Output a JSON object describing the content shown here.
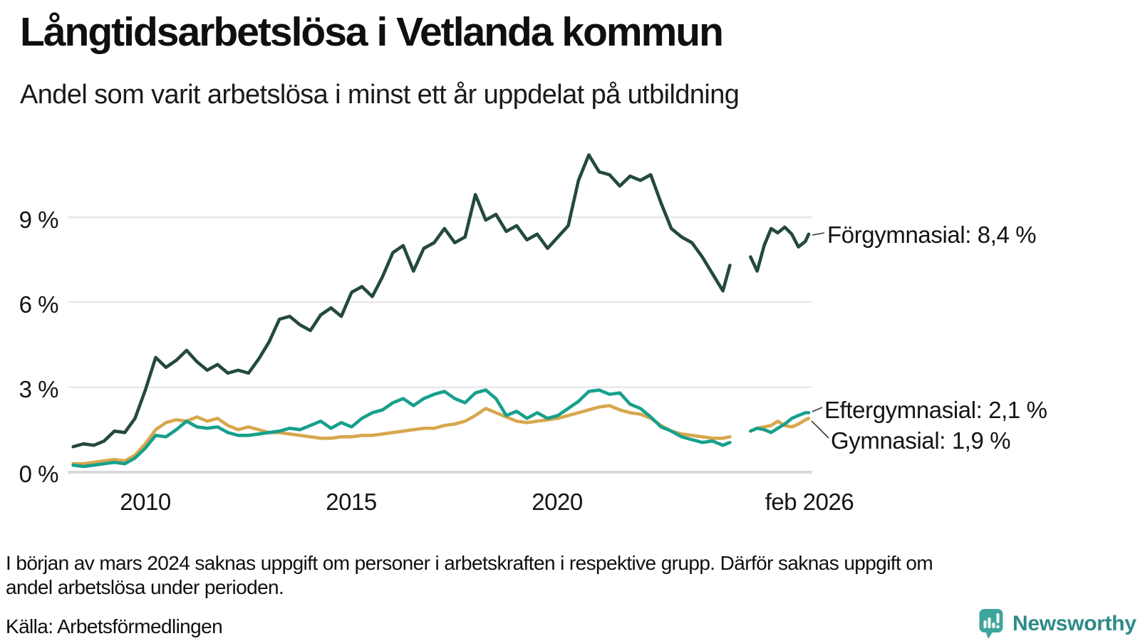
{
  "page": {
    "title": "Långtidsarbetslösa i Vetlanda kommun",
    "subtitle": "Andel som varit arbetslösa i minst ett år uppdelat på utbildning"
  },
  "footnote": {
    "line1": "I början av mars 2024 saknas uppgift om personer i arbetskraften i respektive grupp. Därför saknas uppgift om",
    "line2": "andel arbetslösa under perioden."
  },
  "source": "Källa: Arbetsförmedlingen",
  "logo": {
    "text": "Newsworthy",
    "icon": "chart-bars-speech-bubble-icon",
    "icon_color": "#3ea69b",
    "text_color": "#2e8b87"
  },
  "chart_data": {
    "type": "line",
    "title": "Långtidsarbetslösa i Vetlanda kommun",
    "subtitle": "Andel som varit arbetslösa i minst ett år uppdelat på utbildning",
    "unit": "%",
    "grid": "horizontal",
    "legend_position": "right-end-labels",
    "xlim": [
      2008.1,
      2026.3
    ],
    "ylim": [
      0,
      11.6
    ],
    "x_note": "x is decimal year; nulls = data missing from March 2024",
    "x": [
      2008.25,
      2008.5,
      2008.75,
      2009,
      2009.25,
      2009.5,
      2009.75,
      2010,
      2010.25,
      2010.5,
      2010.75,
      2011,
      2011.25,
      2011.5,
      2011.75,
      2012,
      2012.25,
      2012.5,
      2012.75,
      2013,
      2013.25,
      2013.5,
      2013.75,
      2014,
      2014.25,
      2014.5,
      2014.75,
      2015,
      2015.25,
      2015.5,
      2015.75,
      2016,
      2016.25,
      2016.5,
      2016.75,
      2017,
      2017.25,
      2017.5,
      2017.75,
      2018,
      2018.25,
      2018.5,
      2018.75,
      2019,
      2019.25,
      2019.5,
      2019.75,
      2020,
      2020.25,
      2020.5,
      2020.75,
      2021,
      2021.25,
      2021.5,
      2021.75,
      2022,
      2022.25,
      2022.5,
      2022.75,
      2023,
      2023.25,
      2023.5,
      2023.75,
      2024,
      2024.17,
      2024.33,
      2024.5,
      2024.67,
      2024.83,
      2025,
      2025.17,
      2025.33,
      2025.5,
      2025.67,
      2025.83,
      2026,
      2026.08
    ],
    "series": [
      {
        "name": "Förgymnasial",
        "color": "#24493f",
        "end_value": 8.4,
        "end_label": "Förgymnasial: 8,4 %",
        "values": [
          0.9,
          1.0,
          0.95,
          1.1,
          1.45,
          1.4,
          1.9,
          2.9,
          4.05,
          3.7,
          3.95,
          4.3,
          3.9,
          3.6,
          3.8,
          3.5,
          3.6,
          3.5,
          4.0,
          4.6,
          5.4,
          5.5,
          5.2,
          5.0,
          5.55,
          5.8,
          5.5,
          6.35,
          6.55,
          6.2,
          6.9,
          7.75,
          8.0,
          7.1,
          7.9,
          8.1,
          8.6,
          8.1,
          8.3,
          9.8,
          8.9,
          9.1,
          8.5,
          8.7,
          8.2,
          8.4,
          7.9,
          8.3,
          8.7,
          10.3,
          11.2,
          10.6,
          10.5,
          10.1,
          10.45,
          10.3,
          10.5,
          9.5,
          8.6,
          8.3,
          8.1,
          7.6,
          7.0,
          6.4,
          7.3,
          null,
          null,
          7.6,
          7.1,
          8.0,
          8.6,
          8.45,
          8.65,
          8.4,
          7.95,
          8.15,
          8.4
        ]
      },
      {
        "name": "Eftergymnasial",
        "color": "#16a08c",
        "end_value": 2.1,
        "end_label": "Eftergymnasial: 2,1 %",
        "values": [
          0.25,
          0.2,
          0.25,
          0.3,
          0.35,
          0.3,
          0.5,
          0.85,
          1.3,
          1.25,
          1.5,
          1.8,
          1.6,
          1.55,
          1.6,
          1.4,
          1.3,
          1.3,
          1.35,
          1.4,
          1.45,
          1.55,
          1.5,
          1.65,
          1.8,
          1.55,
          1.75,
          1.6,
          1.9,
          2.1,
          2.2,
          2.45,
          2.6,
          2.35,
          2.6,
          2.75,
          2.85,
          2.6,
          2.45,
          2.8,
          2.9,
          2.6,
          2.0,
          2.15,
          1.9,
          2.1,
          1.9,
          2.0,
          2.25,
          2.5,
          2.85,
          2.9,
          2.75,
          2.8,
          2.4,
          2.25,
          1.95,
          1.6,
          1.45,
          1.25,
          1.15,
          1.05,
          1.1,
          0.95,
          1.05,
          null,
          null,
          1.45,
          1.55,
          1.5,
          1.4,
          1.55,
          1.7,
          1.9,
          2.0,
          2.1,
          2.1
        ]
      },
      {
        "name": "Gymnasial",
        "color": "#d8a74d",
        "end_value": 1.9,
        "end_label": "Gymnasial: 1,9 %",
        "values": [
          0.3,
          0.3,
          0.35,
          0.4,
          0.45,
          0.4,
          0.6,
          1.0,
          1.5,
          1.75,
          1.85,
          1.8,
          1.95,
          1.8,
          1.9,
          1.65,
          1.5,
          1.6,
          1.5,
          1.4,
          1.4,
          1.35,
          1.3,
          1.25,
          1.2,
          1.2,
          1.25,
          1.25,
          1.3,
          1.3,
          1.35,
          1.4,
          1.45,
          1.5,
          1.55,
          1.55,
          1.65,
          1.7,
          1.8,
          2.0,
          2.25,
          2.1,
          1.95,
          1.8,
          1.75,
          1.8,
          1.85,
          1.9,
          2.0,
          2.1,
          2.2,
          2.3,
          2.35,
          2.2,
          2.1,
          2.05,
          1.9,
          1.65,
          1.45,
          1.35,
          1.3,
          1.25,
          1.2,
          1.2,
          1.25,
          null,
          null,
          1.45,
          1.55,
          1.6,
          1.65,
          1.8,
          1.65,
          1.6,
          1.7,
          1.85,
          1.9
        ]
      }
    ],
    "xticks": [
      {
        "label": "2010",
        "x": 2010
      },
      {
        "label": "2015",
        "x": 2015
      },
      {
        "label": "2020",
        "x": 2020
      },
      {
        "label": "feb 2026",
        "x": 2026.08
      }
    ],
    "yticks": [
      {
        "label": "0 %",
        "v": 0
      },
      {
        "label": "3 %",
        "v": 3
      },
      {
        "label": "6 %",
        "v": 6
      },
      {
        "label": "9 %",
        "v": 9
      }
    ]
  }
}
